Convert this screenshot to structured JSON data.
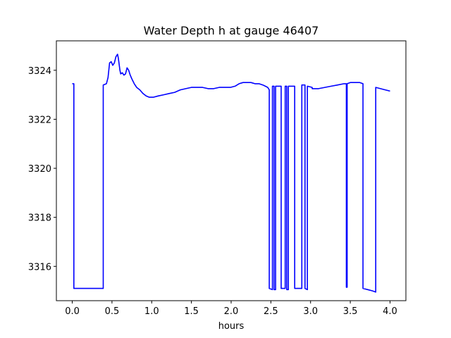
{
  "chart_data": {
    "type": "line",
    "title": "Water Depth h at gauge 46407",
    "xlabel": "hours",
    "ylabel": "",
    "xlim": [
      -0.2,
      4.2
    ],
    "ylim": [
      3314.6,
      3325.2
    ],
    "xticks": [
      0.0,
      0.5,
      1.0,
      1.5,
      2.0,
      2.5,
      3.0,
      3.5,
      4.0
    ],
    "xtick_labels": [
      "0.0",
      "0.5",
      "1.0",
      "1.5",
      "2.0",
      "2.5",
      "3.0",
      "3.5",
      "4.0"
    ],
    "yticks": [
      3316,
      3318,
      3320,
      3322,
      3324
    ],
    "ytick_labels": [
      "3316",
      "3318",
      "3320",
      "3322",
      "3324"
    ],
    "grid": false,
    "series": [
      {
        "color": "#0000ff",
        "x": [
          0.0,
          0.02,
          0.02,
          0.25,
          0.39,
          0.39,
          0.43,
          0.45,
          0.47,
          0.49,
          0.51,
          0.53,
          0.55,
          0.57,
          0.58,
          0.6,
          0.61,
          0.63,
          0.65,
          0.67,
          0.69,
          0.71,
          0.73,
          0.75,
          0.78,
          0.81,
          0.85,
          0.89,
          0.93,
          0.97,
          1.02,
          1.08,
          1.15,
          1.22,
          1.29,
          1.36,
          1.43,
          1.5,
          1.57,
          1.64,
          1.71,
          1.78,
          1.85,
          1.92,
          1.99,
          2.05,
          2.1,
          2.15,
          2.2,
          2.25,
          2.3,
          2.35,
          2.4,
          2.43,
          2.46,
          2.48,
          2.48,
          2.52,
          2.52,
          2.54,
          2.54,
          2.56,
          2.56,
          2.63,
          2.63,
          2.68,
          2.68,
          2.7,
          2.7,
          2.72,
          2.72,
          2.8,
          2.8,
          2.89,
          2.89,
          2.93,
          2.93,
          2.96,
          2.96,
          3.02,
          3.02,
          3.1,
          3.18,
          3.26,
          3.34,
          3.42,
          3.45,
          3.45,
          3.46,
          3.46,
          3.5,
          3.54,
          3.58,
          3.62,
          3.66,
          3.66,
          3.72,
          3.78,
          3.82,
          3.82,
          3.88,
          3.94,
          4.0
        ],
        "y": [
          3323.45,
          3323.45,
          3315.1,
          3315.1,
          3315.1,
          3323.4,
          3323.45,
          3323.7,
          3324.3,
          3324.35,
          3324.2,
          3324.3,
          3324.55,
          3324.65,
          3324.5,
          3324.0,
          3323.85,
          3323.9,
          3323.8,
          3323.85,
          3324.1,
          3324.0,
          3323.8,
          3323.65,
          3323.45,
          3323.3,
          3323.2,
          3323.05,
          3322.95,
          3322.9,
          3322.9,
          3322.95,
          3323.0,
          3323.05,
          3323.1,
          3323.2,
          3323.25,
          3323.3,
          3323.3,
          3323.3,
          3323.25,
          3323.25,
          3323.3,
          3323.3,
          3323.3,
          3323.35,
          3323.45,
          3323.5,
          3323.5,
          3323.5,
          3323.45,
          3323.45,
          3323.4,
          3323.35,
          3323.3,
          3323.2,
          3315.1,
          3315.05,
          3323.35,
          3323.35,
          3315.05,
          3315.05,
          3323.35,
          3323.35,
          3315.1,
          3315.1,
          3323.35,
          3323.35,
          3315.05,
          3315.05,
          3323.35,
          3323.35,
          3315.1,
          3315.1,
          3323.4,
          3323.4,
          3315.1,
          3315.05,
          3323.35,
          3323.3,
          3323.25,
          3323.25,
          3323.3,
          3323.35,
          3323.4,
          3323.45,
          3323.45,
          3315.15,
          3315.15,
          3323.45,
          3323.5,
          3323.5,
          3323.5,
          3323.5,
          3323.45,
          3315.1,
          3315.05,
          3315.0,
          3314.95,
          3323.3,
          3323.25,
          3323.2,
          3323.15
        ]
      }
    ]
  }
}
